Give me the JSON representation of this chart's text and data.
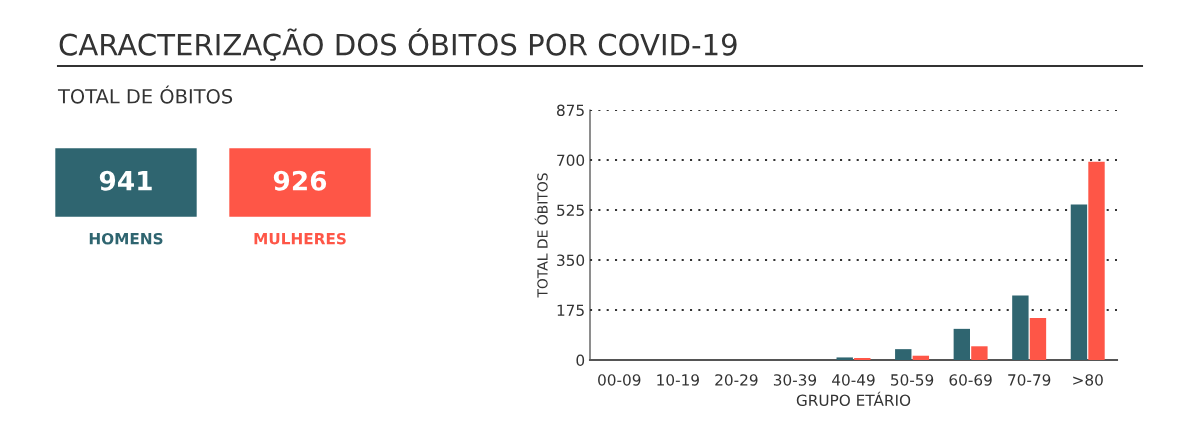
{
  "chart_data": [
    {
      "type": "other",
      "title": "CARACTERIZAÇÃO DOS ÓBITOS POR COVID-19",
      "subtitle": "TOTAL DE ÓBITOS",
      "categories": [
        "HOMENS",
        "MULHERES"
      ],
      "values": [
        941,
        926
      ],
      "data_labels": true,
      "colors": [
        "#2f6570",
        "#fe5647"
      ]
    },
    {
      "type": "bar",
      "categories": [
        "00-09",
        "10-19",
        "20-29",
        "30-39",
        "40-49",
        "50-59",
        "60-69",
        "70-79",
        ">80"
      ],
      "xlabel": "GRUPO ETÁRIO",
      "ylabel": "TOTAL DE ÓBITOS",
      "ylim": [
        0,
        875
      ],
      "yticks": [
        0,
        175,
        350,
        525,
        700,
        875
      ],
      "grid": "y",
      "series": [
        {
          "color": "#2f6570",
          "values": [
            0,
            0,
            0,
            0,
            9,
            38,
            109,
            226,
            544
          ]
        },
        {
          "color": "#fe5647",
          "values": [
            0,
            0,
            0,
            0,
            7,
            15,
            48,
            147,
            694
          ]
        }
      ]
    }
  ]
}
